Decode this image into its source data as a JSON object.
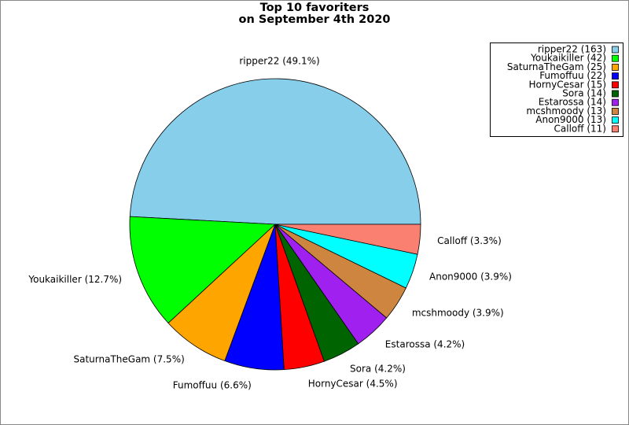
{
  "chart_data": {
    "type": "pie",
    "title": [
      "Top 10 favoriters",
      "on September 4th 2020"
    ],
    "categories": [
      "ripper22",
      "Youkaikiller",
      "SaturnaTheGam",
      "Fumoffuu",
      "HornyCesar",
      "Sora",
      "Estarossa",
      "mcshmoody",
      "Anon9000",
      "Calloff"
    ],
    "values": [
      49.1,
      12.7,
      7.5,
      6.6,
      4.5,
      4.2,
      4.2,
      3.9,
      3.9,
      3.3
    ],
    "value_labels": [
      "ripper22 (49.1%)",
      "Youkaikiller (12.7%)",
      "SaturnaTheGam (7.5%)",
      "Fumoffuu (6.6%)",
      "HornyCesar (4.5%)",
      "Sora (4.2%)",
      "Estarossa (4.2%)",
      "mcshmoody (3.9%)",
      "Anon9000 (3.9%)",
      "Calloff (3.3%)"
    ],
    "legend_labels": [
      "ripper22 (163)",
      "Youkaikiller (42)",
      "SaturnaTheGam (25)",
      "Fumoffuu (22)",
      "HornyCesar (15)",
      "Sora (14)",
      "Estarossa (14)",
      "mcshmoody (13)",
      "Anon9000 (13)",
      "Calloff (11)"
    ],
    "colors": [
      "#87ceeb",
      "#00ff00",
      "#ffa500",
      "#0000ff",
      "#ff0000",
      "#006400",
      "#a020f0",
      "#cd853f",
      "#00ffff",
      "#fa8072"
    ],
    "legend_position": "upper right"
  }
}
